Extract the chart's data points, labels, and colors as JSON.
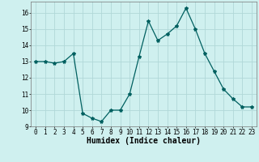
{
  "x": [
    0,
    1,
    2,
    3,
    4,
    5,
    6,
    7,
    8,
    9,
    10,
    11,
    12,
    13,
    14,
    15,
    16,
    17,
    18,
    19,
    20,
    21,
    22,
    23
  ],
  "y": [
    13.0,
    13.0,
    12.9,
    13.0,
    13.5,
    9.8,
    9.5,
    9.3,
    10.0,
    10.0,
    11.0,
    13.3,
    15.5,
    14.3,
    14.7,
    15.2,
    16.3,
    15.0,
    13.5,
    12.4,
    11.3,
    10.7,
    10.2,
    10.2
  ],
  "xlim": [
    -0.5,
    23.5
  ],
  "ylim": [
    9,
    16.7
  ],
  "yticks": [
    9,
    10,
    11,
    12,
    13,
    14,
    15,
    16
  ],
  "xticks": [
    0,
    1,
    2,
    3,
    4,
    5,
    6,
    7,
    8,
    9,
    10,
    11,
    12,
    13,
    14,
    15,
    16,
    17,
    18,
    19,
    20,
    21,
    22,
    23
  ],
  "xlabel": "Humidex (Indice chaleur)",
  "line_color": "#006060",
  "marker": "*",
  "marker_size": 3,
  "bg_color": "#cff0ef",
  "grid_color": "#b0d8d8",
  "tick_fontsize": 5.5,
  "label_fontsize": 7
}
